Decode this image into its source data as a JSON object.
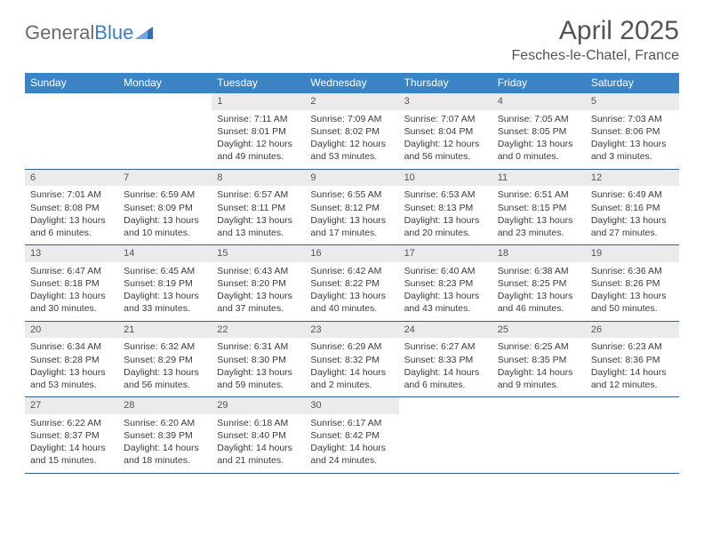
{
  "logo": {
    "part1": "General",
    "part2": "Blue"
  },
  "title": "April 2025",
  "location": "Fesches-le-Chatel, France",
  "colors": {
    "header_bg": "#3a84c6",
    "header_fg": "#ffffff",
    "daynum_bg": "#ebebeb",
    "week_border": "#2f5e93",
    "text": "#3b3b3b",
    "title_fg": "#545454"
  },
  "dows": [
    "Sunday",
    "Monday",
    "Tuesday",
    "Wednesday",
    "Thursday",
    "Friday",
    "Saturday"
  ],
  "weeks": [
    [
      null,
      null,
      {
        "n": "1",
        "sunrise": "Sunrise: 7:11 AM",
        "sunset": "Sunset: 8:01 PM",
        "daylight": "Daylight: 12 hours and 49 minutes."
      },
      {
        "n": "2",
        "sunrise": "Sunrise: 7:09 AM",
        "sunset": "Sunset: 8:02 PM",
        "daylight": "Daylight: 12 hours and 53 minutes."
      },
      {
        "n": "3",
        "sunrise": "Sunrise: 7:07 AM",
        "sunset": "Sunset: 8:04 PM",
        "daylight": "Daylight: 12 hours and 56 minutes."
      },
      {
        "n": "4",
        "sunrise": "Sunrise: 7:05 AM",
        "sunset": "Sunset: 8:05 PM",
        "daylight": "Daylight: 13 hours and 0 minutes."
      },
      {
        "n": "5",
        "sunrise": "Sunrise: 7:03 AM",
        "sunset": "Sunset: 8:06 PM",
        "daylight": "Daylight: 13 hours and 3 minutes."
      }
    ],
    [
      {
        "n": "6",
        "sunrise": "Sunrise: 7:01 AM",
        "sunset": "Sunset: 8:08 PM",
        "daylight": "Daylight: 13 hours and 6 minutes."
      },
      {
        "n": "7",
        "sunrise": "Sunrise: 6:59 AM",
        "sunset": "Sunset: 8:09 PM",
        "daylight": "Daylight: 13 hours and 10 minutes."
      },
      {
        "n": "8",
        "sunrise": "Sunrise: 6:57 AM",
        "sunset": "Sunset: 8:11 PM",
        "daylight": "Daylight: 13 hours and 13 minutes."
      },
      {
        "n": "9",
        "sunrise": "Sunrise: 6:55 AM",
        "sunset": "Sunset: 8:12 PM",
        "daylight": "Daylight: 13 hours and 17 minutes."
      },
      {
        "n": "10",
        "sunrise": "Sunrise: 6:53 AM",
        "sunset": "Sunset: 8:13 PM",
        "daylight": "Daylight: 13 hours and 20 minutes."
      },
      {
        "n": "11",
        "sunrise": "Sunrise: 6:51 AM",
        "sunset": "Sunset: 8:15 PM",
        "daylight": "Daylight: 13 hours and 23 minutes."
      },
      {
        "n": "12",
        "sunrise": "Sunrise: 6:49 AM",
        "sunset": "Sunset: 8:16 PM",
        "daylight": "Daylight: 13 hours and 27 minutes."
      }
    ],
    [
      {
        "n": "13",
        "sunrise": "Sunrise: 6:47 AM",
        "sunset": "Sunset: 8:18 PM",
        "daylight": "Daylight: 13 hours and 30 minutes."
      },
      {
        "n": "14",
        "sunrise": "Sunrise: 6:45 AM",
        "sunset": "Sunset: 8:19 PM",
        "daylight": "Daylight: 13 hours and 33 minutes."
      },
      {
        "n": "15",
        "sunrise": "Sunrise: 6:43 AM",
        "sunset": "Sunset: 8:20 PM",
        "daylight": "Daylight: 13 hours and 37 minutes."
      },
      {
        "n": "16",
        "sunrise": "Sunrise: 6:42 AM",
        "sunset": "Sunset: 8:22 PM",
        "daylight": "Daylight: 13 hours and 40 minutes."
      },
      {
        "n": "17",
        "sunrise": "Sunrise: 6:40 AM",
        "sunset": "Sunset: 8:23 PM",
        "daylight": "Daylight: 13 hours and 43 minutes."
      },
      {
        "n": "18",
        "sunrise": "Sunrise: 6:38 AM",
        "sunset": "Sunset: 8:25 PM",
        "daylight": "Daylight: 13 hours and 46 minutes."
      },
      {
        "n": "19",
        "sunrise": "Sunrise: 6:36 AM",
        "sunset": "Sunset: 8:26 PM",
        "daylight": "Daylight: 13 hours and 50 minutes."
      }
    ],
    [
      {
        "n": "20",
        "sunrise": "Sunrise: 6:34 AM",
        "sunset": "Sunset: 8:28 PM",
        "daylight": "Daylight: 13 hours and 53 minutes."
      },
      {
        "n": "21",
        "sunrise": "Sunrise: 6:32 AM",
        "sunset": "Sunset: 8:29 PM",
        "daylight": "Daylight: 13 hours and 56 minutes."
      },
      {
        "n": "22",
        "sunrise": "Sunrise: 6:31 AM",
        "sunset": "Sunset: 8:30 PM",
        "daylight": "Daylight: 13 hours and 59 minutes."
      },
      {
        "n": "23",
        "sunrise": "Sunrise: 6:29 AM",
        "sunset": "Sunset: 8:32 PM",
        "daylight": "Daylight: 14 hours and 2 minutes."
      },
      {
        "n": "24",
        "sunrise": "Sunrise: 6:27 AM",
        "sunset": "Sunset: 8:33 PM",
        "daylight": "Daylight: 14 hours and 6 minutes."
      },
      {
        "n": "25",
        "sunrise": "Sunrise: 6:25 AM",
        "sunset": "Sunset: 8:35 PM",
        "daylight": "Daylight: 14 hours and 9 minutes."
      },
      {
        "n": "26",
        "sunrise": "Sunrise: 6:23 AM",
        "sunset": "Sunset: 8:36 PM",
        "daylight": "Daylight: 14 hours and 12 minutes."
      }
    ],
    [
      {
        "n": "27",
        "sunrise": "Sunrise: 6:22 AM",
        "sunset": "Sunset: 8:37 PM",
        "daylight": "Daylight: 14 hours and 15 minutes."
      },
      {
        "n": "28",
        "sunrise": "Sunrise: 6:20 AM",
        "sunset": "Sunset: 8:39 PM",
        "daylight": "Daylight: 14 hours and 18 minutes."
      },
      {
        "n": "29",
        "sunrise": "Sunrise: 6:18 AM",
        "sunset": "Sunset: 8:40 PM",
        "daylight": "Daylight: 14 hours and 21 minutes."
      },
      {
        "n": "30",
        "sunrise": "Sunrise: 6:17 AM",
        "sunset": "Sunset: 8:42 PM",
        "daylight": "Daylight: 14 hours and 24 minutes."
      },
      null,
      null,
      null
    ]
  ]
}
